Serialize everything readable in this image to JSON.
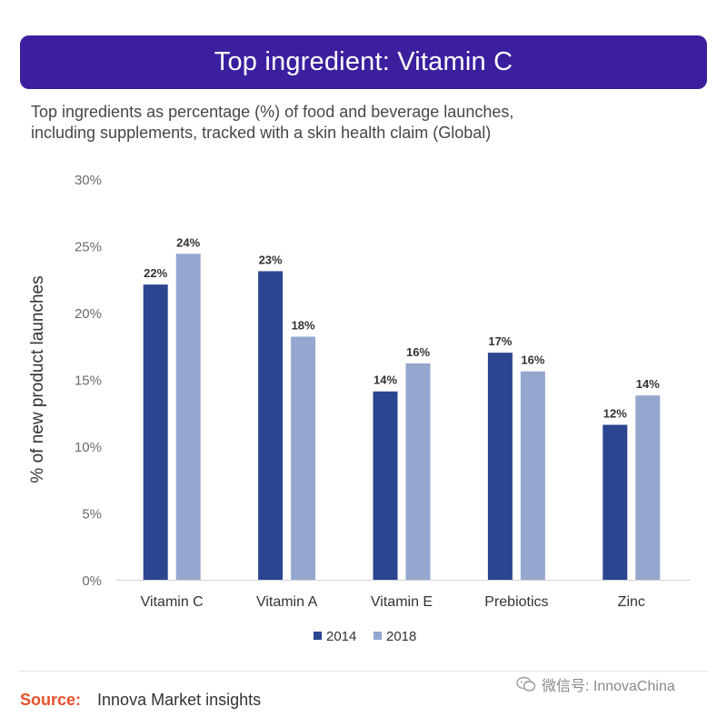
{
  "header": {
    "title": "Top ingredient: Vitamin C",
    "subtitle_line1": "Top ingredients as percentage (%) of food and beverage launches,",
    "subtitle_line2": "including supplements, tracked with a skin health claim (Global)"
  },
  "chart_data": {
    "type": "bar",
    "title": "Top ingredient: Vitamin C",
    "ylabel": "% of new product launches",
    "xlabel": "",
    "categories": [
      "Vitamin C",
      "Vitamin A",
      "Vitamin E",
      "Prebiotics",
      "Zinc"
    ],
    "series": [
      {
        "name": "2014",
        "values": [
          22.1,
          23.1,
          14.1,
          17.0,
          11.6
        ],
        "labels": [
          "22%",
          "23%",
          "14%",
          "17%",
          "12%"
        ],
        "color": "#2b4590"
      },
      {
        "name": "2018",
        "values": [
          24.4,
          18.2,
          16.2,
          15.6,
          13.8
        ],
        "labels": [
          "24%",
          "18%",
          "16%",
          "16%",
          "14%"
        ],
        "color": "#95a7cf"
      }
    ],
    "ylim": [
      0,
      30
    ],
    "yticks": [
      0,
      5,
      10,
      15,
      20,
      25,
      30
    ],
    "ytick_labels": [
      "0%",
      "5%",
      "10%",
      "15%",
      "20%",
      "25%",
      "30%"
    ],
    "grid": false,
    "legend_position": "bottom"
  },
  "footer": {
    "source_label": "Source:",
    "source_text": "Innova Market insights",
    "watermark": "微信号: InnovaChina"
  }
}
